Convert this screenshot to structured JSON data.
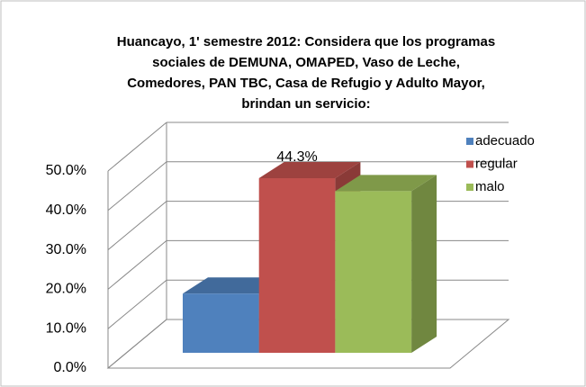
{
  "chart_data": {
    "type": "bar3d",
    "title": [
      "Huancayo, 1' semestre 2012: Considera que los programas",
      "sociales de DEMUNA, OMAPED, Vaso de Leche,",
      "Comedores, PAN TBC, Casa de Refugio y Adulto Mayor,",
      "brindan un servicio:"
    ],
    "series": [
      {
        "name": "adecuado",
        "color": "#4f81bd",
        "values": [
          15.0
        ]
      },
      {
        "name": "regular",
        "color": "#c0504d",
        "values": [
          44.3
        ],
        "value_labels": [
          "44.3%"
        ]
      },
      {
        "name": "malo",
        "color": "#9bbb59",
        "values": [
          41.0
        ]
      }
    ],
    "ylim": [
      0,
      50
    ],
    "yticks": [
      {
        "value": 0,
        "label": "0.0%"
      },
      {
        "value": 10,
        "label": "10.0%"
      },
      {
        "value": 20,
        "label": "20.0%"
      },
      {
        "value": 30,
        "label": "30.0%"
      },
      {
        "value": 40,
        "label": "40.0%"
      },
      {
        "value": 50,
        "label": "50.0%"
      }
    ],
    "grid": true,
    "legend": "right"
  }
}
